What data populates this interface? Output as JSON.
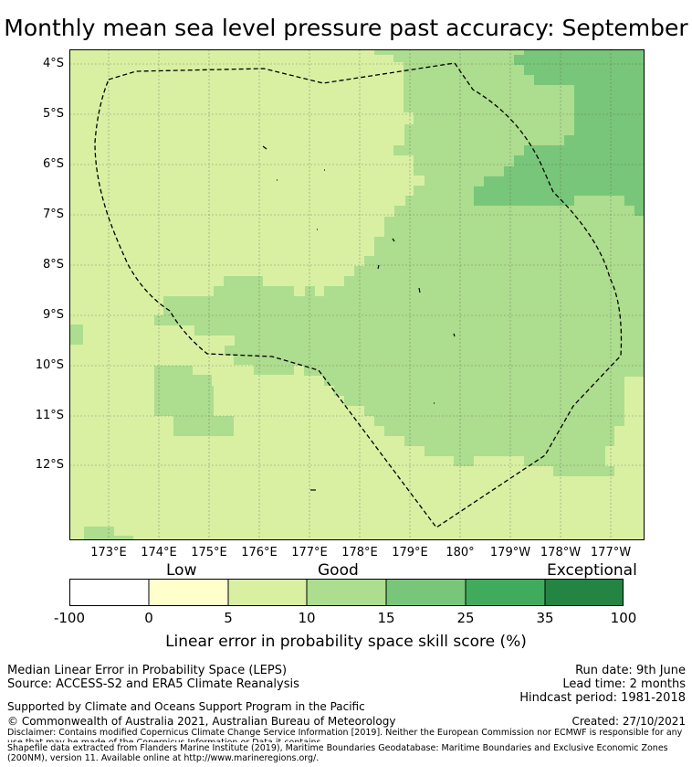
{
  "title": "Monthly mean sea level pressure past accuracy: September",
  "map": {
    "lat_labels": [
      "4°S",
      "5°S",
      "6°S",
      "7°S",
      "8°S",
      "9°S",
      "10°S",
      "11°S",
      "12°S"
    ],
    "lon_labels": [
      "173°E",
      "174°E",
      "175°E",
      "176°E",
      "177°E",
      "178°E",
      "179°E",
      "180°",
      "179°W",
      "178°W",
      "177°W"
    ]
  },
  "colorbar": {
    "category_labels": [
      "Low",
      "Good",
      "Exceptional"
    ],
    "ticks": [
      "-100",
      "0",
      "5",
      "10",
      "15",
      "25",
      "35",
      "100"
    ],
    "colors": [
      "#ffffff",
      "#ffffcc",
      "#d9f0a3",
      "#addd8e",
      "#78c679",
      "#41ab5d",
      "#238443"
    ],
    "title": "Linear error in probability space skill score (%)"
  },
  "footer": {
    "method": "Median Linear Error in Probability Space (LEPS)",
    "source": "Source: ACCESS-S2 and ERA5 Climate Reanalysis",
    "run_date": "Run date: 9th June",
    "lead_time": "Lead time: 2 months",
    "hindcast": "Hindcast period: 1981-2018",
    "support": "Supported by Climate and Oceans Support Program in the Pacific",
    "copyright": "© Commonwealth of Australia 2021, Australian Bureau of Meteorology",
    "created": "Created: 27/10/2021",
    "disclaimer": "Disclaimer: Contains modified Copernicus Climate Change Service Information [2019]. Neither the European Commission nor ECMWF is responsible for any use that may be made of the Copernicus Information or Data it contains.",
    "shapefile": "Shapefile data extracted from Flanders Marine Institute (2019), Maritime Boundaries Geodatabase: Maritime Boundaries and Exclusive Economic Zones (200NM), version 11. Available online at http://www.marineregions.org/."
  }
}
